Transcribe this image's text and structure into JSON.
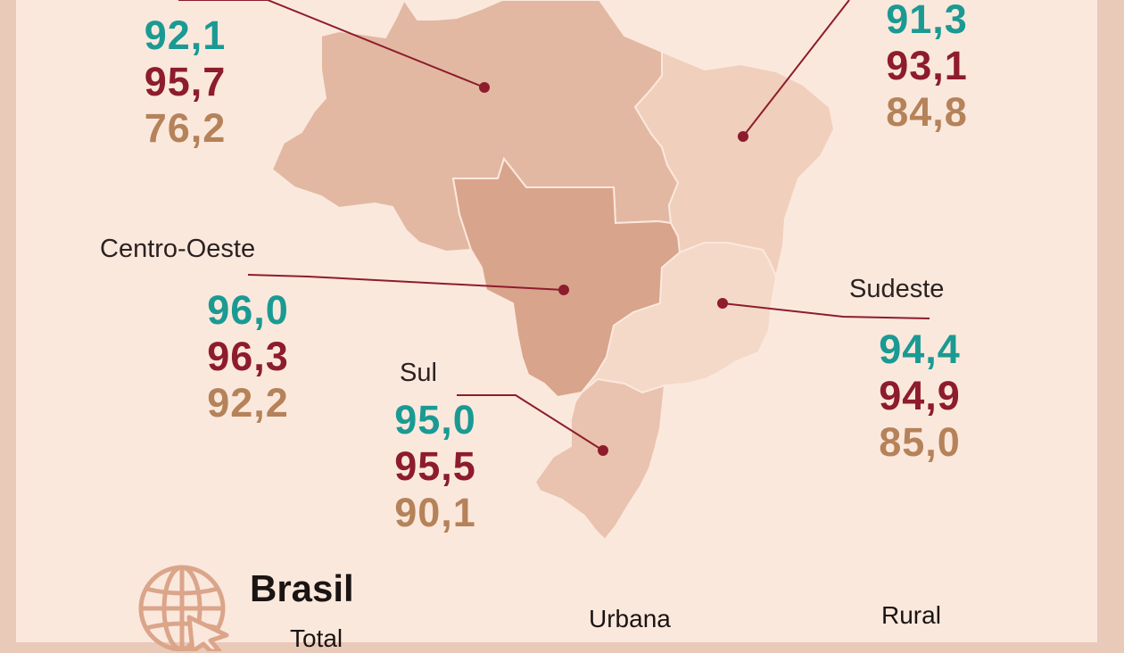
{
  "colors": {
    "total": "#1a9a92",
    "urbana": "#8d1c2c",
    "rural": "#b58259",
    "background": "#fbe8dd",
    "frame": "#e9c9b8",
    "leader_line": "#8d1c2c"
  },
  "regions": {
    "norte": {
      "total": "92,1",
      "urbana": "95,7",
      "rural": "76,2"
    },
    "nordeste": {
      "total": "91,3",
      "urbana": "93,1",
      "rural": "84,8"
    },
    "centro_oeste": {
      "name": "Centro-Oeste",
      "total": "96,0",
      "urbana": "96,3",
      "rural": "92,2"
    },
    "sudeste": {
      "name": "Sudeste",
      "total": "94,4",
      "urbana": "94,9",
      "rural": "85,0"
    },
    "sul": {
      "name": "Sul",
      "total": "95,0",
      "urbana": "95,5",
      "rural": "90,1"
    }
  },
  "brasil": {
    "title": "Brasil",
    "total_label": "Total",
    "urbana_label": "Urbana",
    "rural_label": "Rural",
    "icon": "globe-cursor-icon"
  }
}
